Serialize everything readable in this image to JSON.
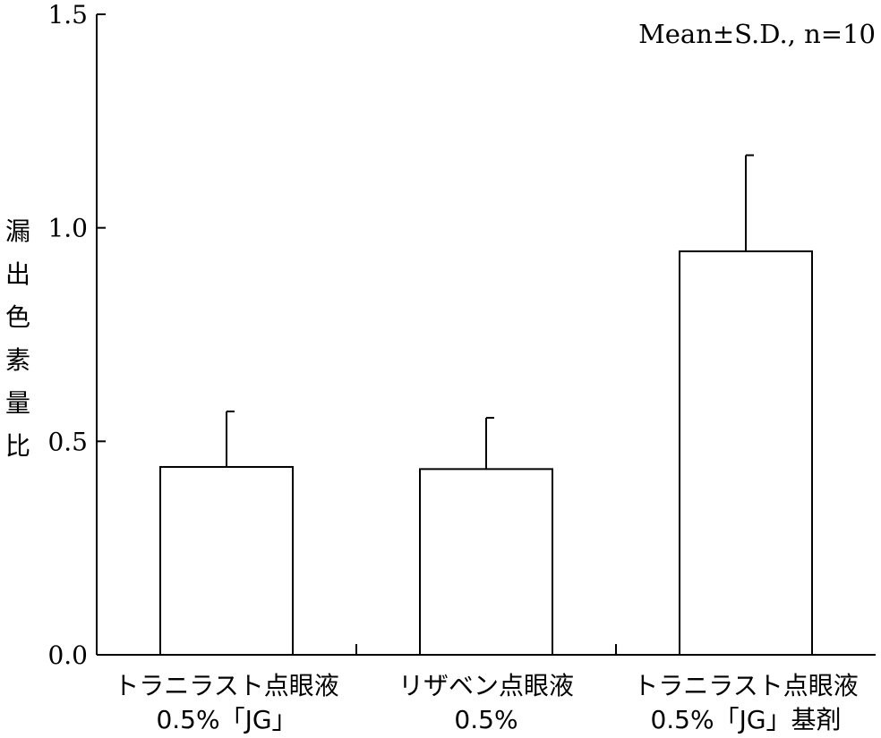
{
  "chart_data": {
    "type": "bar",
    "categories": [
      [
        "トラニラスト点眼液",
        "0.5%「JG」"
      ],
      [
        "リザベン点眼液",
        "0.5%"
      ],
      [
        "トラニラスト点眼液",
        "0.5%「JG」基剤"
      ]
    ],
    "values": [
      0.44,
      0.435,
      0.945
    ],
    "error_sd": [
      0.13,
      0.12,
      0.225
    ],
    "ylabel": "漏出色素量比",
    "xlabel": "",
    "ylim": [
      0,
      1.5
    ],
    "yticks": [
      0.0,
      0.5,
      1.0,
      1.5
    ],
    "ytick_labels": [
      "0.0",
      "0.5",
      "1.0",
      "1.5"
    ],
    "annotation": "Mean±S.D., n=10",
    "bar_fill": "#ffffff",
    "bar_stroke": "#000000",
    "grid": false,
    "legend": "none"
  }
}
